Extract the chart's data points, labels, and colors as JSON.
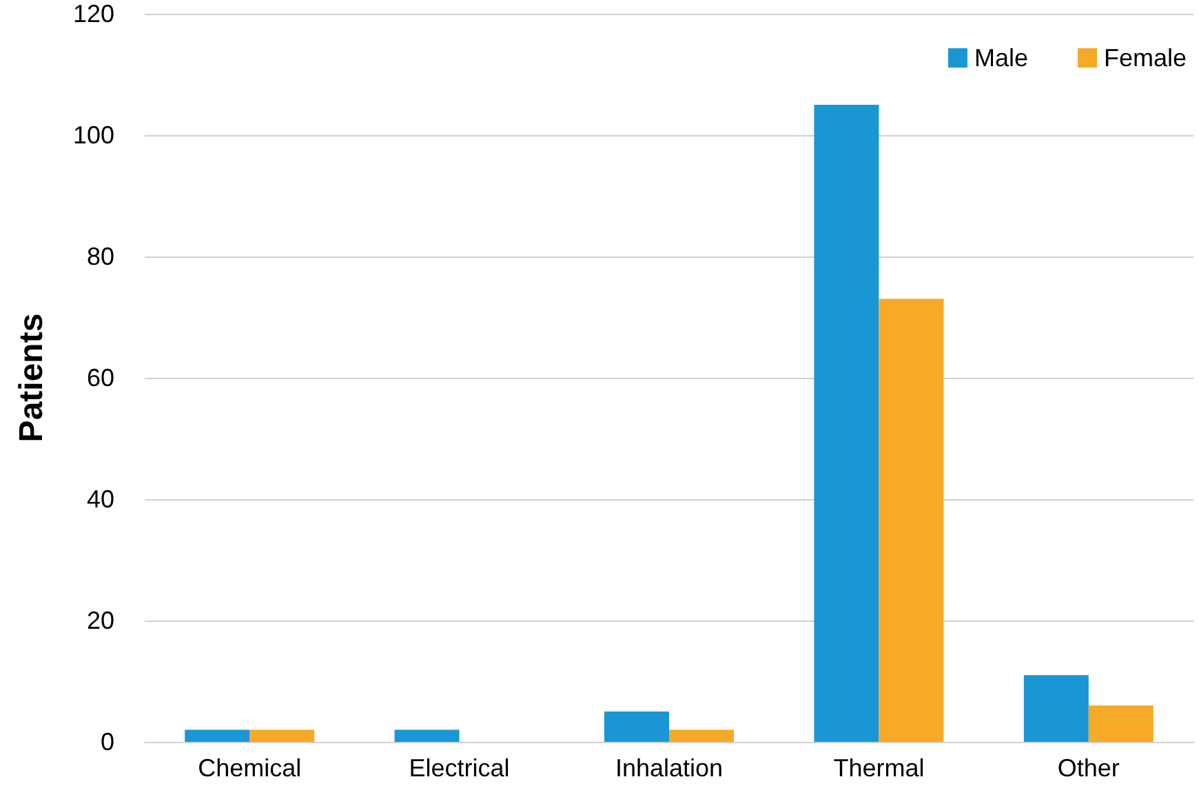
{
  "chart_data": {
    "type": "bar",
    "ylabel": "Patients",
    "categories": [
      "Chemical",
      "Electrical",
      "Inhalation",
      "Thermal",
      "Other"
    ],
    "series": [
      {
        "name": "Male",
        "color": "#1897d4",
        "values": [
          2,
          2,
          5,
          105,
          11
        ]
      },
      {
        "name": "Female",
        "color": "#f7a928",
        "values": [
          2,
          0,
          2,
          73,
          6
        ]
      }
    ],
    "ylim": [
      0,
      120
    ],
    "yticks": [
      0,
      20,
      40,
      60,
      80,
      100,
      120
    ],
    "grid": "y",
    "legend": "top right"
  }
}
